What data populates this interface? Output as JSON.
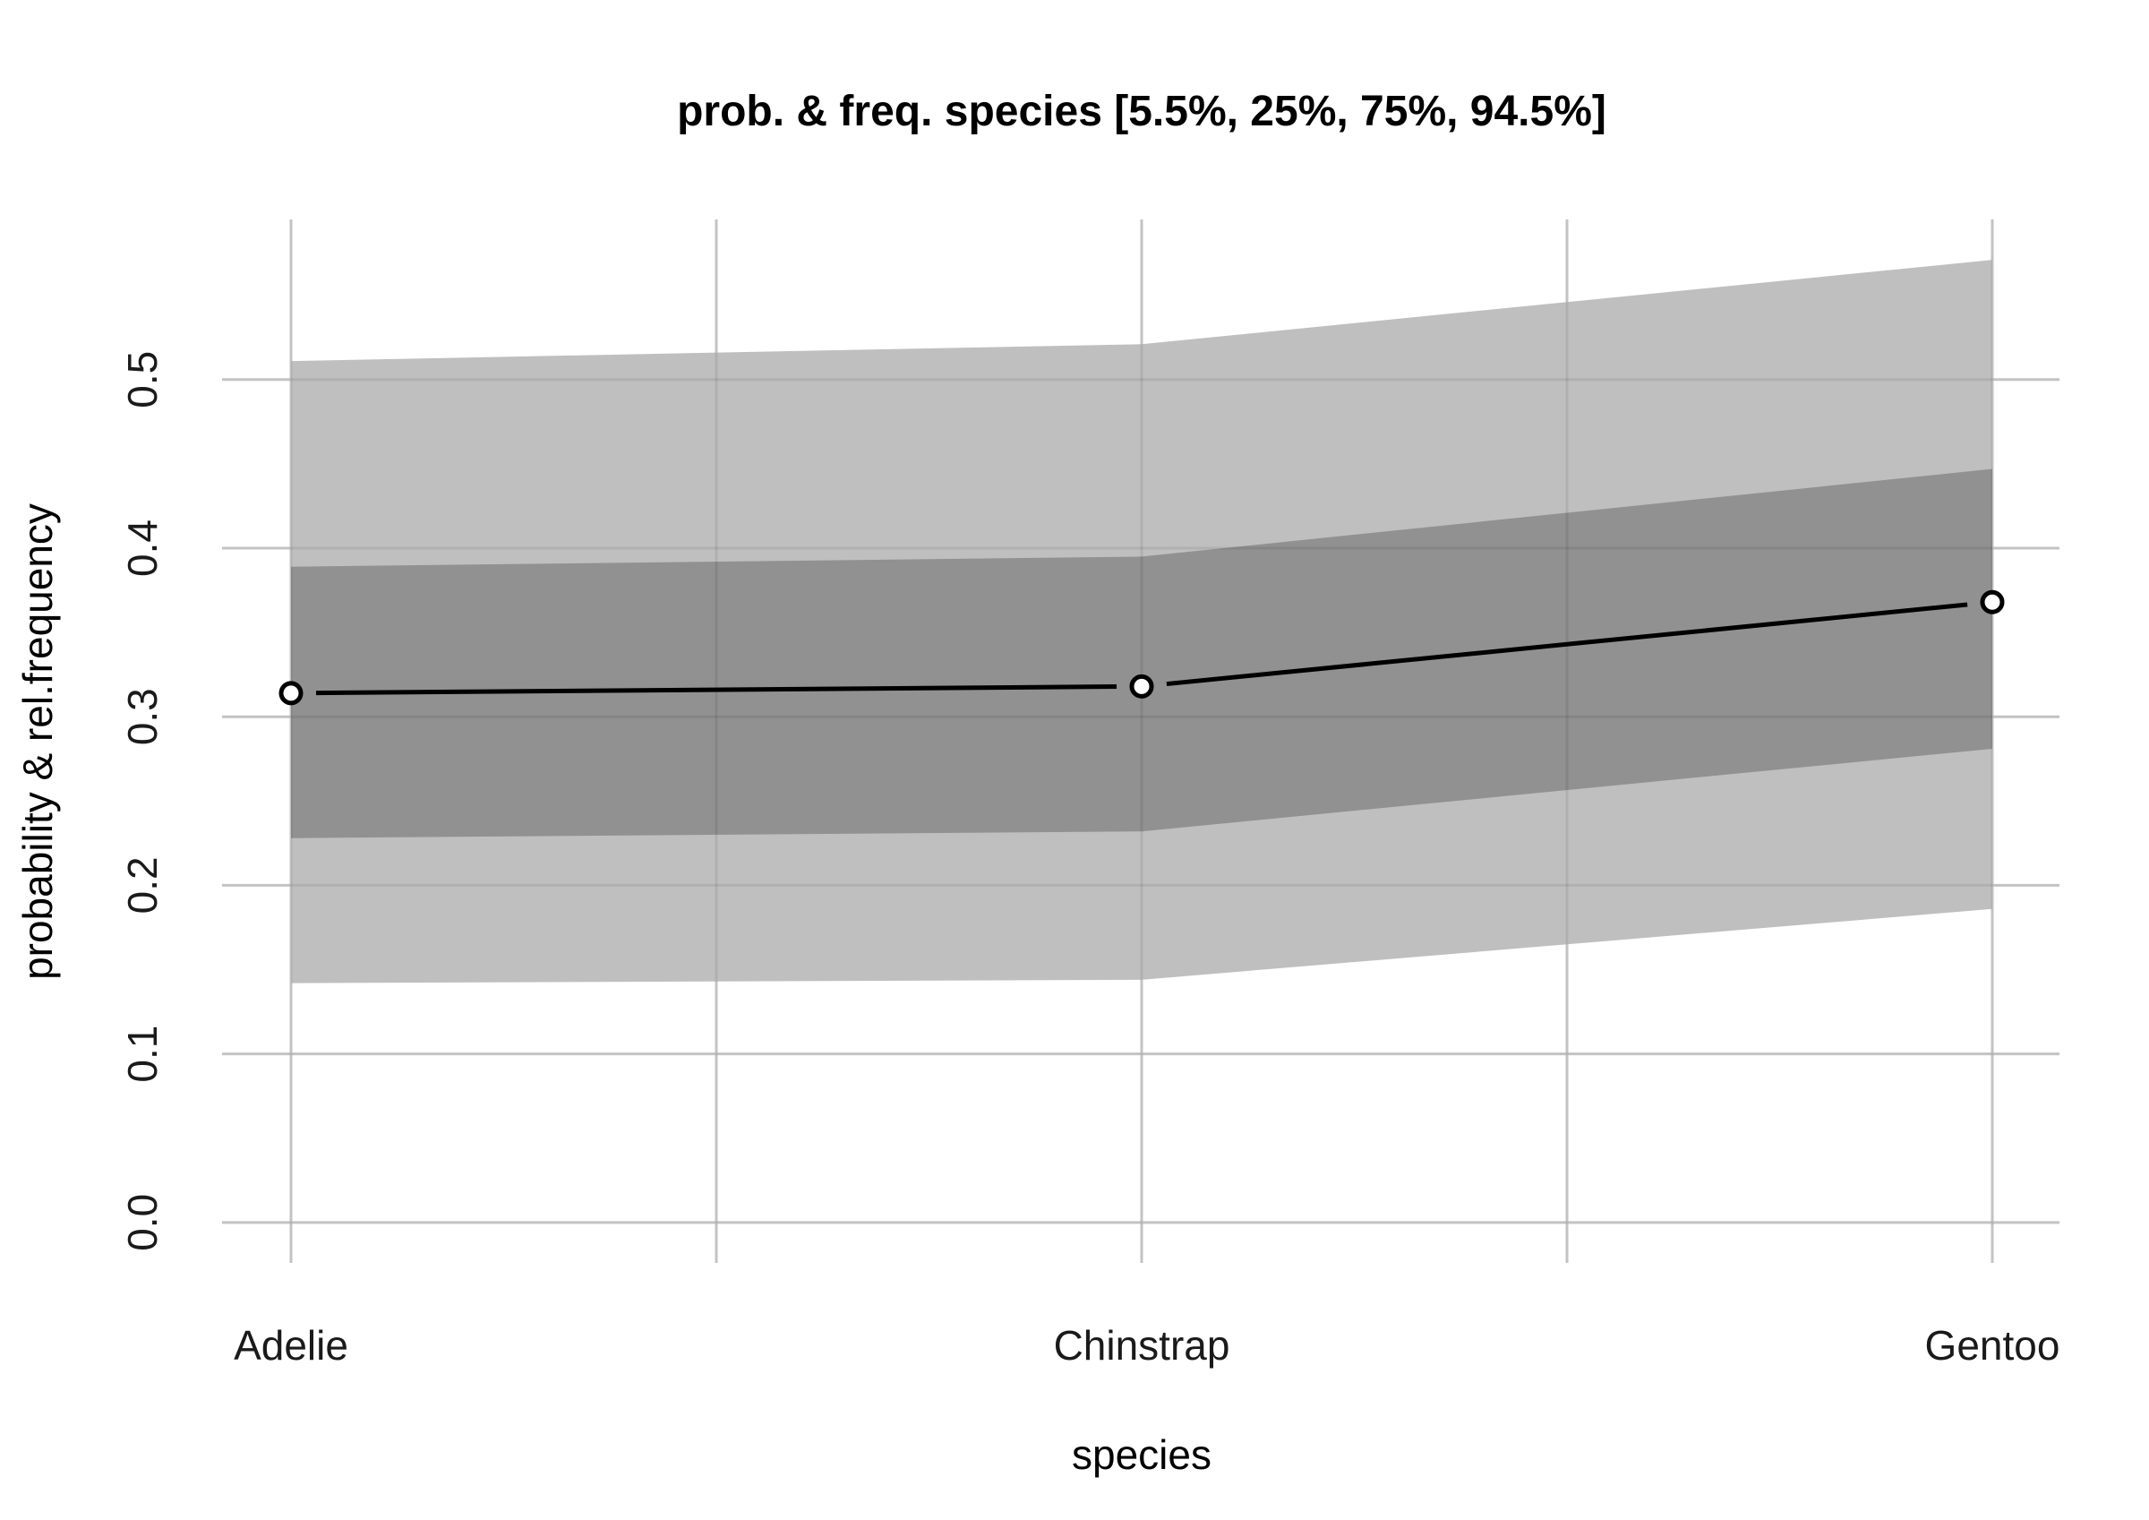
{
  "chart_data": {
    "type": "area",
    "title": "prob. & freq.  species  [5.5%, 25%, 75%, 94.5%]",
    "xlabel": "species",
    "ylabel": "probability & rel.frequency",
    "categories": [
      "Adelie",
      "Chinstrap",
      "Gentoo"
    ],
    "yticks": [
      "0.0",
      "0.1",
      "0.2",
      "0.3",
      "0.4",
      "0.5"
    ],
    "ytick_values": [
      0.0,
      0.1,
      0.2,
      0.3,
      0.4,
      0.5
    ],
    "ylim": [
      -0.024,
      0.595
    ],
    "grid": true,
    "legend": "none",
    "series": [
      {
        "values": [
          0.314,
          0.318,
          0.368
        ]
      }
    ],
    "bands": [
      {
        "interval": "5.5%–94.5%",
        "lower": [
          0.142,
          0.144,
          0.186
        ],
        "upper": [
          0.511,
          0.521,
          0.571
        ],
        "color": "#bfbfbf"
      },
      {
        "interval": "25%–75%",
        "lower": [
          0.228,
          0.232,
          0.281
        ],
        "upper": [
          0.389,
          0.395,
          0.447
        ],
        "color": "#8c8c8c"
      }
    ]
  }
}
